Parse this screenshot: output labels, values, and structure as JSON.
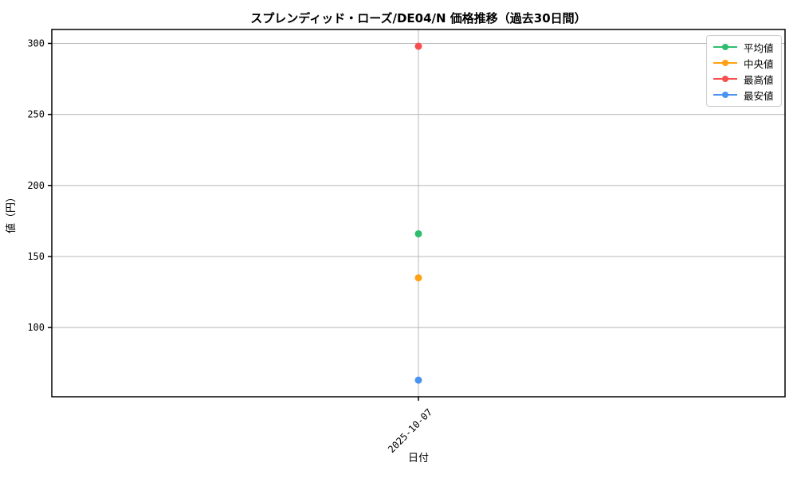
{
  "chart_data": {
    "type": "line",
    "title": "スプレンディッド・ローズ/DE04/N 価格推移（過去30日間）",
    "xlabel": "日付",
    "ylabel": "値（円）",
    "categories": [
      "2025-10-07"
    ],
    "series": [
      {
        "key": "mean",
        "name": "平均値",
        "color": "#2ebd6e",
        "values": [
          166
        ]
      },
      {
        "key": "median",
        "name": "中央値",
        "color": "#ffa113",
        "values": [
          135
        ]
      },
      {
        "key": "max",
        "name": "最高値",
        "color": "#f74f4f",
        "values": [
          298
        ]
      },
      {
        "key": "min",
        "name": "最安値",
        "color": "#4a93f0",
        "values": [
          63
        ]
      }
    ],
    "ylim": [
      51.3,
      309.8
    ],
    "yticks": [
      100,
      150,
      200,
      250,
      300
    ],
    "grid": true,
    "grid_color": "#b8b8b8",
    "spine_color": "#000000",
    "legend_position": "upper right",
    "x_tick_rotation_deg": 45
  }
}
